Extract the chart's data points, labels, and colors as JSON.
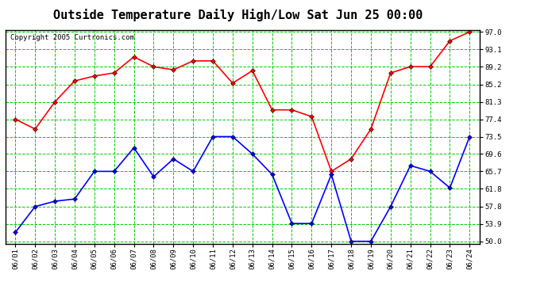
{
  "title": "Outside Temperature Daily High/Low Sat Jun 25 00:00",
  "copyright": "Copyright 2005 Curtronics.com",
  "dates": [
    "06/01",
    "06/02",
    "06/03",
    "06/04",
    "06/05",
    "06/06",
    "06/07",
    "06/08",
    "06/09",
    "06/10",
    "06/11",
    "06/12",
    "06/13",
    "06/14",
    "06/15",
    "06/16",
    "06/17",
    "06/18",
    "06/19",
    "06/20",
    "06/21",
    "06/22",
    "06/23",
    "06/24"
  ],
  "high_temps": [
    77.4,
    75.2,
    81.3,
    86.0,
    87.1,
    87.8,
    91.4,
    89.2,
    88.5,
    90.5,
    90.5,
    85.5,
    88.3,
    79.5,
    79.5,
    78.0,
    65.7,
    68.5,
    75.2,
    87.8,
    89.2,
    89.2,
    95.0,
    97.0
  ],
  "low_temps": [
    52.0,
    57.8,
    59.0,
    59.5,
    65.7,
    65.7,
    71.0,
    64.5,
    68.5,
    65.7,
    73.5,
    73.5,
    69.6,
    65.0,
    54.0,
    54.0,
    65.0,
    50.0,
    50.0,
    57.8,
    67.0,
    65.7,
    62.0,
    73.5
  ],
  "high_color": "#ff0000",
  "low_color": "#0000ff",
  "bg_color": "#ffffff",
  "grid_color": "#00cc00",
  "plot_bg_color": "#ffffff",
  "ymin": 50.0,
  "ymax": 97.0,
  "yticks": [
    50.0,
    53.9,
    57.8,
    61.8,
    65.7,
    69.6,
    73.5,
    77.4,
    81.3,
    85.2,
    89.2,
    93.1,
    97.0
  ],
  "title_fontsize": 11,
  "marker": "D",
  "marker_size": 3,
  "line_width": 1.2,
  "copyright_fontsize": 6.5,
  "tick_fontsize": 6.5
}
